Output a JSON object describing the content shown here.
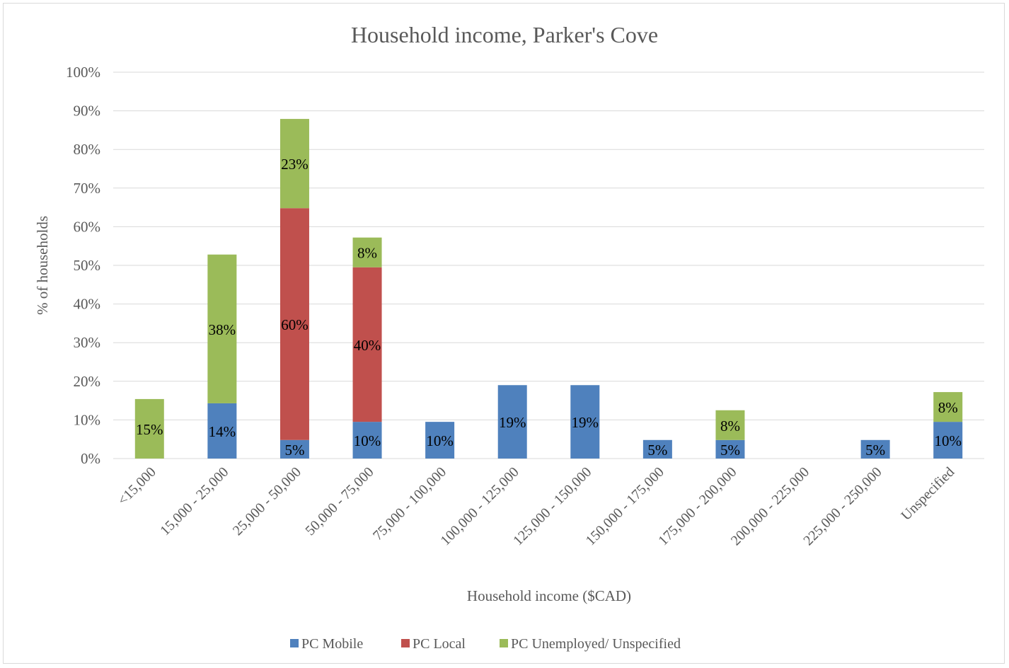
{
  "chart_data": {
    "type": "bar",
    "stacked": true,
    "title": "Household income, Parker's Cove",
    "xlabel": "Household income ($CAD)",
    "ylabel": "% of households",
    "ylim": [
      0,
      100
    ],
    "yticks": [
      0,
      10,
      20,
      30,
      40,
      50,
      60,
      70,
      80,
      90,
      100
    ],
    "ytick_labels": [
      "0%",
      "10%",
      "20%",
      "30%",
      "40%",
      "50%",
      "60%",
      "70%",
      "80%",
      "90%",
      "100%"
    ],
    "grid": true,
    "legend_position": "bottom",
    "categories": [
      "<15,000",
      "15,000 - 25,000",
      "25,000 - 50,000",
      "50,000 - 75,000",
      "75,000 - 100,000",
      "100,000 - 125,000",
      "125,000 - 150,000",
      "150,000 - 175,000",
      "175,000 - 200,000",
      "200,000 - 225,000",
      "225,000 - 250,000",
      "Unspecified"
    ],
    "series": [
      {
        "name": "PC Mobile",
        "color": "#4f81bd",
        "values": [
          0,
          14.3,
          4.8,
          9.5,
          9.5,
          19.0,
          19.0,
          4.8,
          4.8,
          0,
          4.8,
          9.5
        ],
        "labels": [
          "",
          "14%",
          "5%",
          "10%",
          "10%",
          "19%",
          "19%",
          "5%",
          "5%",
          "",
          "5%",
          "10%"
        ]
      },
      {
        "name": "PC Local",
        "color": "#c0504d",
        "values": [
          0,
          0,
          60.0,
          40.0,
          0,
          0,
          0,
          0,
          0,
          0,
          0,
          0
        ],
        "labels": [
          "",
          "",
          "60%",
          "40%",
          "",
          "",
          "",
          "",
          "",
          "",
          "",
          ""
        ]
      },
      {
        "name": "PC Unemployed/ Unspecified",
        "color": "#9bbb59",
        "values": [
          15.4,
          38.5,
          23.1,
          7.7,
          0,
          0,
          0,
          0,
          7.7,
          0,
          0,
          7.7
        ],
        "labels": [
          "15%",
          "38%",
          "23%",
          "8%",
          "",
          "",
          "",
          "",
          "8%",
          "",
          "",
          "8%"
        ]
      }
    ]
  }
}
